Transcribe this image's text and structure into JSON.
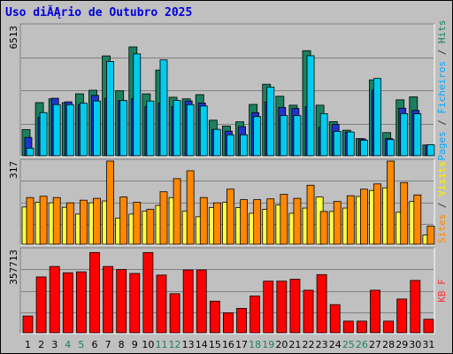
{
  "chart_data": {
    "type": "bar",
    "title": "Uso diĂĄrio de Outubro 2025",
    "categories": [
      "1",
      "2",
      "3",
      "4",
      "5",
      "6",
      "7",
      "8",
      "9",
      "10",
      "11",
      "12",
      "13",
      "14",
      "15",
      "16",
      "17",
      "18",
      "19",
      "20",
      "21",
      "22",
      "23",
      "24",
      "25",
      "26",
      "27",
      "28",
      "29",
      "30",
      "31"
    ],
    "weekend_days": [
      "4",
      "5",
      "11",
      "12",
      "18",
      "19",
      "25",
      "26"
    ],
    "panels": [
      {
        "id": "top",
        "max_label": "6513",
        "ylim": [
          0,
          6513
        ],
        "grid": true,
        "right_label": [
          {
            "text": "Pages",
            "color": "#00aaff"
          },
          {
            "text": " / ",
            "color": "#333333"
          },
          {
            "text": "Ficheiros",
            "color": "#00aaff"
          },
          {
            "text": " / ",
            "color": "#333333"
          },
          {
            "text": "Hits",
            "color": "#1a8060"
          }
        ],
        "series": [
          {
            "key": "hits",
            "color": "#1a8060",
            "values": [
              1310,
              2660,
              2850,
              2660,
              3100,
              3280,
              5000,
              3250,
              5450,
              3100,
              4290,
              2930,
              2850,
              3060,
              1780,
              1490,
              1700,
              2570,
              3580,
              2980,
              2530,
              5260,
              2530,
              1710,
              1280,
              860,
              3800,
              1160,
              2800,
              2950,
              540
            ]
          },
          {
            "key": "files",
            "color": "#2233cc",
            "values": [
              920,
              1920,
              2880,
              2700,
              2560,
              3020,
              2880,
              2760,
              2850,
              2460,
              2630,
              2460,
              2740,
              2640,
              1320,
              1230,
              1460,
              2160,
              2690,
              2420,
              2370,
              2450,
              1420,
              1570,
              1180,
              840,
              3290,
              860,
              2380,
              2270,
              530
            ]
          },
          {
            "key": "pages",
            "color": "#00ccee",
            "values": [
              380,
              2160,
              2560,
              2560,
              2630,
              2740,
              4720,
              2760,
              5100,
              2740,
              4800,
              2770,
              2560,
              2490,
              1320,
              1050,
              1050,
              1960,
              3440,
              2010,
              2010,
              5010,
              2110,
              1220,
              1190,
              780,
              3870,
              810,
              2110,
              2100,
              550
            ]
          }
        ]
      },
      {
        "id": "middle",
        "max_label": "317",
        "ylim": [
          0,
          317
        ],
        "grid": true,
        "right_label": [
          {
            "text": "Sites",
            "color": "#ff8800"
          },
          {
            "text": " / ",
            "color": "#333333"
          },
          {
            "text": "Visits",
            "color": "#ffee00"
          }
        ],
        "series": [
          {
            "key": "visits",
            "color": "#ffff44",
            "values": [
              142,
              160,
              158,
              141,
              115,
              158,
              165,
              100,
              115,
              126,
              148,
              178,
              126,
              105,
              140,
              160,
              140,
              118,
              133,
              150,
              118,
              138,
              180,
              125,
              138,
              182,
              205,
              215,
              122,
              163,
              35
            ]
          },
          {
            "key": "sites",
            "color": "#ff8800",
            "values": [
              178,
              183,
              178,
              158,
              168,
              175,
              320,
              180,
              160,
              133,
              200,
              250,
              280,
              178,
              158,
              210,
              170,
              170,
              173,
              190,
              175,
              225,
              125,
              163,
              185,
              210,
              230,
              322,
              235,
              188,
              69
            ]
          }
        ]
      },
      {
        "id": "bottom",
        "max_label": "357713",
        "ylim": [
          0,
          357713
        ],
        "grid": true,
        "right_label": [
          {
            "text": "KB F",
            "color": "#ff3333"
          }
        ],
        "series": [
          {
            "key": "kbytes",
            "color": "#ff0000",
            "values": [
              72000,
              240000,
              285000,
              258000,
              262000,
              345000,
              285000,
              272000,
              255000,
              345000,
              248000,
              168000,
              270000,
              270000,
              136000,
              86000,
              105000,
              158000,
              222000,
              222000,
              230000,
              183000,
              250000,
              121000,
              50000,
              50000,
              183000,
              50000,
              145000,
              225000,
              58000
            ]
          }
        ]
      }
    ]
  }
}
